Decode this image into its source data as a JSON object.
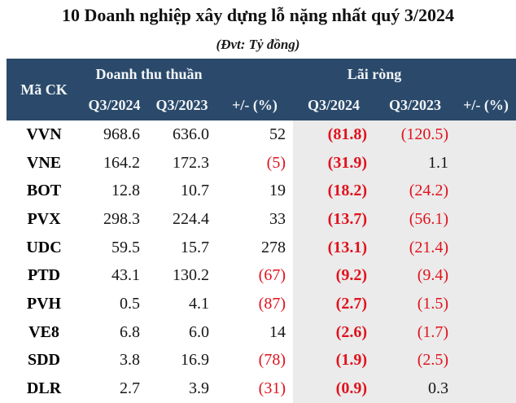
{
  "title": "10 Doanh nghiệp xây dựng lỗ nặng nhất quý 3/2024",
  "subtitle": "(Đvt: Tỷ đồng)",
  "colors": {
    "header_bg": "#2b4a6b",
    "header_text": "#f2f5f8",
    "profit_column_bg": "#ebebeb",
    "negative_value": "#e0121d",
    "text": "#151515"
  },
  "table": {
    "corner_header": "Mã CK",
    "groups": {
      "revenue": "Doanh thu thuần",
      "profit": "Lãi ròng"
    },
    "sub_headers": [
      "Q3/2024",
      "Q3/2023",
      "+/- (%)",
      "Q3/2024",
      "Q3/2023",
      "+/- (%)"
    ],
    "rows": [
      [
        "VVN",
        "968.6",
        "636.0",
        "52",
        "(81.8)",
        "(120.5)",
        ""
      ],
      [
        "VNE",
        "164.2",
        "172.3",
        "(5)",
        "(31.9)",
        "1.1",
        ""
      ],
      [
        "BOT",
        "12.8",
        "10.7",
        "19",
        "(18.2)",
        "(24.2)",
        ""
      ],
      [
        "PVX",
        "298.3",
        "224.4",
        "33",
        "(13.7)",
        "(56.1)",
        ""
      ],
      [
        "UDC",
        "59.5",
        "15.7",
        "278",
        "(13.1)",
        "(21.4)",
        ""
      ],
      [
        "PTD",
        "43.1",
        "130.2",
        "(67)",
        "(9.2)",
        "(9.4)",
        ""
      ],
      [
        "PVH",
        "0.5",
        "4.1",
        "(87)",
        "(2.7)",
        "(1.5)",
        ""
      ],
      [
        "VE8",
        "6.8",
        "6.0",
        "14",
        "(2.6)",
        "(1.7)",
        ""
      ],
      [
        "SDD",
        "3.8",
        "16.9",
        "(78)",
        "(1.9)",
        "(2.5)",
        ""
      ],
      [
        "DLR",
        "2.7",
        "3.9",
        "(31)",
        "(0.9)",
        "0.3",
        ""
      ]
    ]
  },
  "chart_data": {
    "type": "table",
    "title": "10 Doanh nghiệp xây dựng lỗ nặng nhất quý 3/2024",
    "subtitle": "(Đvt: Tỷ đồng)",
    "column_groups": [
      "Mã CK",
      "Doanh thu thuần",
      "Lãi ròng"
    ],
    "columns": [
      "Mã CK",
      "Doanh thu thuần Q3/2024",
      "Doanh thu thuần Q3/2023",
      "Doanh thu thuần +/- (%)",
      "Lãi ròng Q3/2024",
      "Lãi ròng Q3/2023",
      "Lãi ròng +/- (%)"
    ],
    "rows": [
      [
        "VVN",
        968.6,
        636.0,
        52,
        -81.8,
        -120.5,
        null
      ],
      [
        "VNE",
        164.2,
        172.3,
        -5,
        -31.9,
        1.1,
        null
      ],
      [
        "BOT",
        12.8,
        10.7,
        19,
        -18.2,
        -24.2,
        null
      ],
      [
        "PVX",
        298.3,
        224.4,
        33,
        -13.7,
        -56.1,
        null
      ],
      [
        "UDC",
        59.5,
        15.7,
        278,
        -13.1,
        -21.4,
        null
      ],
      [
        "PTD",
        43.1,
        130.2,
        -67,
        -9.2,
        -9.4,
        null
      ],
      [
        "PVH",
        0.5,
        4.1,
        -87,
        -2.7,
        -1.5,
        null
      ],
      [
        "VE8",
        6.8,
        6.0,
        14,
        -2.6,
        -1.7,
        null
      ],
      [
        "SDD",
        3.8,
        16.9,
        -78,
        -1.9,
        -2.5,
        null
      ],
      [
        "DLR",
        2.7,
        3.9,
        -31,
        -0.9,
        0.3,
        null
      ]
    ]
  }
}
